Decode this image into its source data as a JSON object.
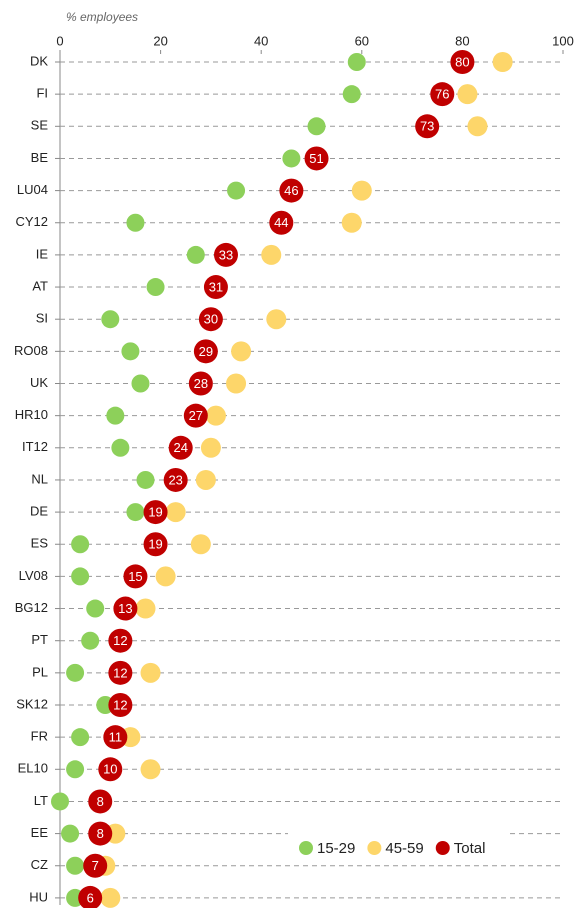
{
  "chart_data": {
    "type": "dotplot",
    "subtitle": "% employees",
    "categories": [
      "DK",
      "FI",
      "SE",
      "BE",
      "LU04",
      "CY12",
      "IE",
      "AT",
      "SI",
      "RO08",
      "UK",
      "HR10",
      "IT12",
      "NL",
      "DE",
      "ES",
      "LV08",
      "BG12",
      "PT",
      "PL",
      "SK12",
      "FR",
      "EL10",
      "LT",
      "EE",
      "CZ",
      "HU"
    ],
    "series": [
      {
        "name": "15-29",
        "color": "#8dd05a",
        "values": [
          59,
          58,
          51,
          46,
          35,
          15,
          27,
          19,
          10,
          14,
          16,
          11,
          12,
          17,
          15,
          4,
          4,
          7,
          6,
          3,
          9,
          4,
          3,
          0,
          2,
          3,
          3
        ]
      },
      {
        "name": "45-59",
        "color": "#fdd66a",
        "values": [
          88,
          81,
          83,
          null,
          60,
          58,
          42,
          null,
          43,
          36,
          35,
          31,
          30,
          29,
          23,
          28,
          21,
          17,
          null,
          18,
          null,
          14,
          18,
          null,
          11,
          9,
          10
        ]
      },
      {
        "name": "Total",
        "color": "#c00000",
        "values": [
          80,
          76,
          73,
          51,
          46,
          44,
          33,
          31,
          30,
          29,
          28,
          27,
          24,
          23,
          19,
          19,
          15,
          13,
          12,
          12,
          12,
          11,
          10,
          8,
          8,
          7,
          6
        ]
      }
    ],
    "xlim": [
      0,
      100
    ],
    "xticks": [
      0,
      20,
      40,
      60,
      80,
      100
    ],
    "grid": true
  }
}
